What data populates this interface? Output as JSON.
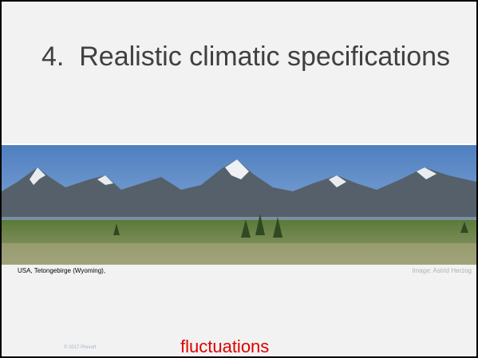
{
  "title": "4.  Realistic climatic specifications",
  "image": {
    "caption": "USA, Tetongebirge (Wyoming),",
    "credit": "Image: Astrid Herzog"
  },
  "footer": {
    "copyright": "© 2017 Prevort",
    "text": "fluctuations"
  }
}
